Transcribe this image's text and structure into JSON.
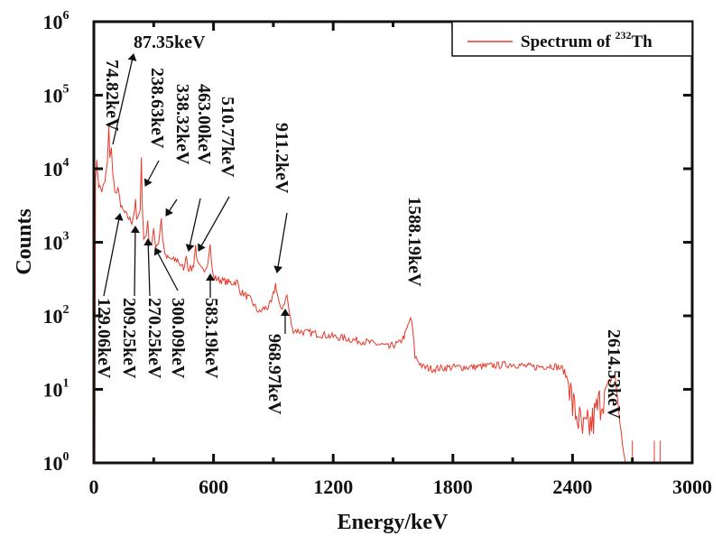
{
  "chart_data": {
    "type": "line",
    "title": "",
    "xlabel": "Energy/keV",
    "ylabel": "Counts",
    "xlim": [
      0,
      3000
    ],
    "ylim": [
      1,
      1000000
    ],
    "yscale": "log",
    "grid": false,
    "legend_position": "top-right",
    "line_color": "#e8382a",
    "x_ticks": [
      {
        "value": 0,
        "label": "0"
      },
      {
        "value": 600,
        "label": "600"
      },
      {
        "value": 1200,
        "label": "1200"
      },
      {
        "value": 1800,
        "label": "1800"
      },
      {
        "value": 2400,
        "label": "2400"
      },
      {
        "value": 3000,
        "label": "3000"
      }
    ],
    "x_minor_ticks": [
      300,
      900,
      1500,
      2100,
      2700
    ],
    "y_ticks": [
      {
        "value": 1,
        "base": "10",
        "exp": "0"
      },
      {
        "value": 10,
        "base": "10",
        "exp": "1"
      },
      {
        "value": 100,
        "base": "10",
        "exp": "2"
      },
      {
        "value": 1000,
        "base": "10",
        "exp": "3"
      },
      {
        "value": 10000,
        "base": "10",
        "exp": "4"
      },
      {
        "value": 100000,
        "base": "10",
        "exp": "5"
      },
      {
        "value": 1000000,
        "base": "10",
        "exp": "6"
      }
    ],
    "series": [
      {
        "name": "Spectrum of 232Th",
        "legend": {
          "prefix": "Spectrum of ",
          "superscript": "232",
          "suffix": "Th"
        },
        "points": [
          [
            0,
            1
          ],
          [
            5,
            1
          ],
          [
            8,
            8000
          ],
          [
            15,
            12000
          ],
          [
            25,
            6000
          ],
          [
            40,
            5000
          ],
          [
            55,
            6500
          ],
          [
            68,
            12000
          ],
          [
            75,
            35000
          ],
          [
            80,
            15000
          ],
          [
            88,
            20000
          ],
          [
            95,
            8000
          ],
          [
            110,
            4500
          ],
          [
            120,
            5000
          ],
          [
            129,
            4500
          ],
          [
            135,
            3000
          ],
          [
            150,
            2600
          ],
          [
            170,
            2200
          ],
          [
            190,
            1900
          ],
          [
            200,
            2400
          ],
          [
            209,
            3500
          ],
          [
            215,
            2000
          ],
          [
            225,
            2200
          ],
          [
            232,
            3000
          ],
          [
            238,
            15000
          ],
          [
            243,
            3000
          ],
          [
            250,
            1100
          ],
          [
            262,
            1300
          ],
          [
            270,
            1800
          ],
          [
            278,
            1000
          ],
          [
            290,
            1000
          ],
          [
            300,
            1400
          ],
          [
            310,
            900
          ],
          [
            325,
            1000
          ],
          [
            338,
            2200
          ],
          [
            345,
            1100
          ],
          [
            360,
            620
          ],
          [
            380,
            600
          ],
          [
            400,
            570
          ],
          [
            420,
            580
          ],
          [
            440,
            460
          ],
          [
            455,
            450
          ],
          [
            463,
            720
          ],
          [
            472,
            450
          ],
          [
            490,
            430
          ],
          [
            500,
            500
          ],
          [
            510,
            900
          ],
          [
            520,
            500
          ],
          [
            540,
            420
          ],
          [
            560,
            450
          ],
          [
            575,
            600
          ],
          [
            583,
            1000
          ],
          [
            590,
            500
          ],
          [
            600,
            330
          ],
          [
            630,
            310
          ],
          [
            660,
            290
          ],
          [
            690,
            280
          ],
          [
            720,
            290
          ],
          [
            730,
            220
          ],
          [
            760,
            190
          ],
          [
            790,
            160
          ],
          [
            810,
            130
          ],
          [
            830,
            110
          ],
          [
            850,
            125
          ],
          [
            870,
            130
          ],
          [
            890,
            150
          ],
          [
            905,
            220
          ],
          [
            911,
            270
          ],
          [
            920,
            200
          ],
          [
            935,
            120
          ],
          [
            950,
            140
          ],
          [
            968,
            190
          ],
          [
            980,
            110
          ],
          [
            995,
            65
          ],
          [
            1050,
            60
          ],
          [
            1100,
            58
          ],
          [
            1150,
            55
          ],
          [
            1200,
            52
          ],
          [
            1250,
            50
          ],
          [
            1300,
            47
          ],
          [
            1350,
            45
          ],
          [
            1400,
            42
          ],
          [
            1450,
            40
          ],
          [
            1480,
            37
          ],
          [
            1500,
            40
          ],
          [
            1530,
            42
          ],
          [
            1560,
            55
          ],
          [
            1580,
            80
          ],
          [
            1588,
            95
          ],
          [
            1600,
            60
          ],
          [
            1610,
            28
          ],
          [
            1650,
            20
          ],
          [
            1700,
            19
          ],
          [
            1800,
            20
          ],
          [
            1900,
            20
          ],
          [
            2000,
            21
          ],
          [
            2100,
            22
          ],
          [
            2200,
            20
          ],
          [
            2300,
            21
          ],
          [
            2350,
            19
          ],
          [
            2380,
            13
          ],
          [
            2400,
            6
          ],
          [
            2430,
            4
          ],
          [
            2450,
            2.5
          ],
          [
            2480,
            3
          ],
          [
            2500,
            3.5
          ],
          [
            2520,
            5
          ],
          [
            2550,
            8
          ],
          [
            2580,
            12
          ],
          [
            2600,
            15
          ],
          [
            2614,
            14
          ],
          [
            2625,
            8
          ],
          [
            2640,
            3
          ],
          [
            2655,
            1.5
          ],
          [
            2665,
            1
          ],
          [
            2700,
            1
          ],
          [
            3000,
            1
          ]
        ]
      }
    ],
    "annotations": [
      {
        "text": "74.82keV",
        "energy": 74.82
      },
      {
        "text": "87.35keV",
        "energy": 87.35
      },
      {
        "text": "238.63keV",
        "energy": 238.63
      },
      {
        "text": "338.32keV",
        "energy": 338.32
      },
      {
        "text": "463.00keV",
        "energy": 463.0
      },
      {
        "text": "510.77keV",
        "energy": 510.77
      },
      {
        "text": "911.2keV",
        "energy": 911.2
      },
      {
        "text": "1588.19keV",
        "energy": 1588.19
      },
      {
        "text": "2614.53keV",
        "energy": 2614.53
      },
      {
        "text": "129.06keV",
        "energy": 129.06
      },
      {
        "text": "209.25keV",
        "energy": 209.25
      },
      {
        "text": "270.25keV",
        "energy": 270.25
      },
      {
        "text": "300.09keV",
        "energy": 300.09
      },
      {
        "text": "583.19keV",
        "energy": 583.19
      },
      {
        "text": "968.97keV",
        "energy": 968.97
      }
    ]
  }
}
